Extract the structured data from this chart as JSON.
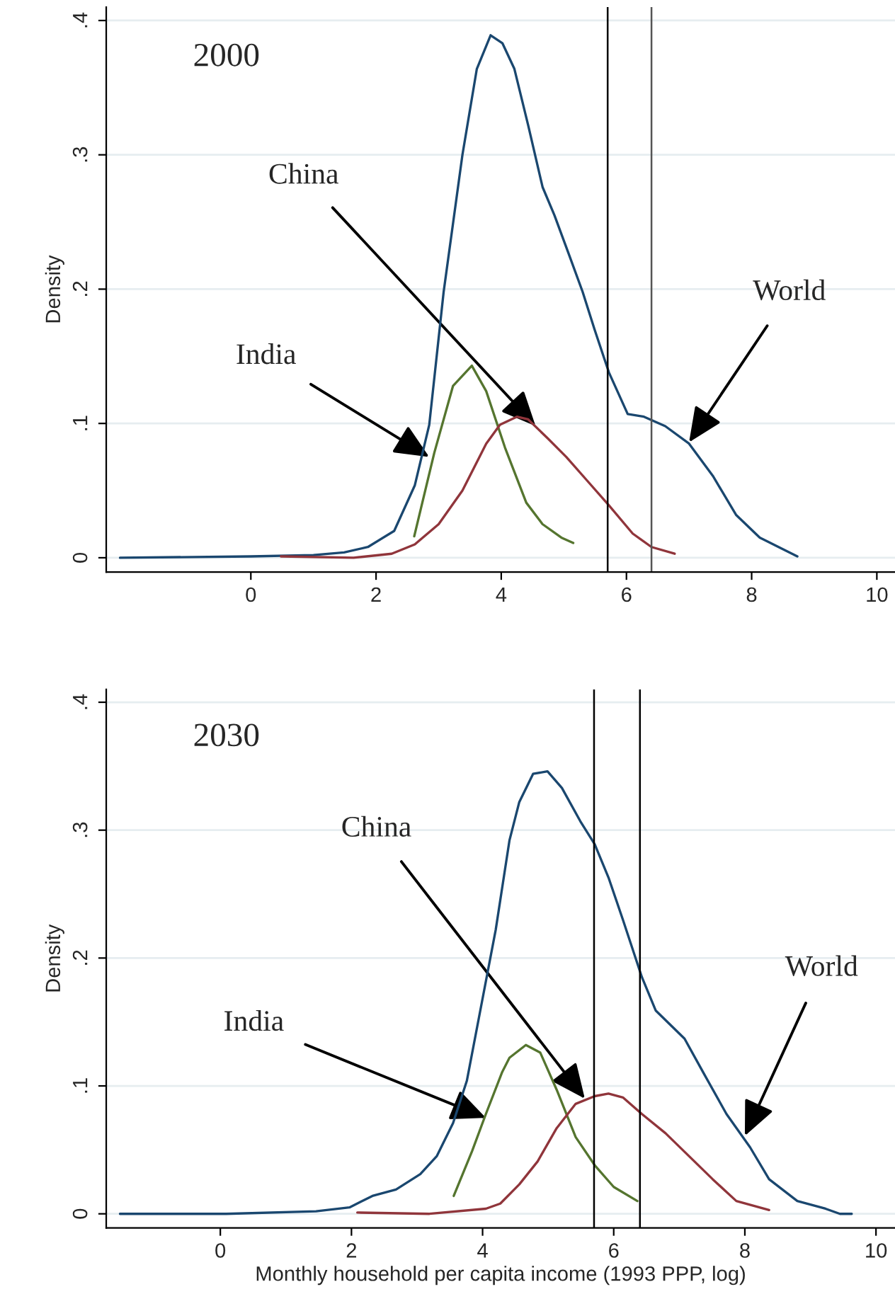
{
  "chart_data": [
    {
      "type": "line",
      "ylabel": "Density",
      "xlim": [
        -2.31,
        10.29
      ],
      "ylim": [
        -0.0106,
        0.41
      ],
      "xticks": [
        0,
        2,
        4,
        6,
        8,
        10
      ],
      "yticks": [
        0,
        {
          "value": 0.1,
          "label": ".1"
        },
        {
          "value": 0.2,
          "label": ".2"
        },
        {
          "value": 0.3,
          "label": ".3"
        },
        {
          "value": 0.4,
          "label": ".4"
        }
      ],
      "grid": "y",
      "tick_labels": "xy",
      "annotations": [
        "2000",
        {
          "text": "China",
          "x": 4.55,
          "y": 0.098
        },
        {
          "text": "India",
          "x": 2.85,
          "y": 0.075
        },
        {
          "text": "World",
          "x": 7.0,
          "y": 0.086
        }
      ],
      "ref_lines": [
        {
          "axis": "x",
          "value": 5.7,
          "color": "#000000"
        },
        {
          "axis": "x",
          "value": 6.4,
          "color": "#555555"
        }
      ],
      "series": [
        {
          "color": "#1a476f",
          "x": [
            -2.09,
            0,
            1,
            1.49,
            1.87,
            2.29,
            2.62,
            2.85,
            3.08,
            3.38,
            3.61,
            3.83,
            4.02,
            4.21,
            4.43,
            4.66,
            4.85,
            5.08,
            5.3,
            5.49,
            5.72,
            6.02,
            6.28,
            6.62,
            7.0,
            7.38,
            7.75,
            8.13,
            8.43,
            8.73
          ],
          "values": [
            0,
            0.001,
            0.002,
            0.004,
            0.008,
            0.02,
            0.054,
            0.099,
            0.198,
            0.3,
            0.364,
            0.389,
            0.383,
            0.364,
            0.322,
            0.276,
            0.255,
            0.226,
            0.198,
            0.17,
            0.138,
            0.107,
            0.105,
            0.098,
            0.085,
            0.061,
            0.032,
            0.015,
            0.008,
            0.001
          ]
        },
        {
          "color": "#55752f",
          "x": [
            2.61,
            2.93,
            3.23,
            3.53,
            3.76,
            4.06,
            4.4,
            4.66,
            4.96,
            5.15
          ],
          "values": [
            0.016,
            0.078,
            0.128,
            0.143,
            0.124,
            0.082,
            0.041,
            0.025,
            0.015,
            0.011
          ]
        },
        {
          "color": "#90353b",
          "x": [
            0.48,
            1.64,
            2.25,
            2.62,
            3.0,
            3.38,
            3.76,
            3.98,
            4.25,
            4.43,
            4.74,
            5.04,
            5.38,
            5.72,
            6.1,
            6.4,
            6.77
          ],
          "values": [
            0.001,
            0,
            0.003,
            0.01,
            0.025,
            0.05,
            0.085,
            0.099,
            0.105,
            0.103,
            0.089,
            0.075,
            0.057,
            0.039,
            0.018,
            0.008,
            0.003
          ]
        }
      ]
    },
    {
      "type": "line",
      "ylabel": "Density",
      "xlabel": "Monthly household per capita income (1993 PPP, log)",
      "xlim": [
        -1.74,
        10.29
      ],
      "ylim": [
        -0.011,
        0.41
      ],
      "xticks": [
        0,
        2,
        4,
        6,
        8,
        10
      ],
      "yticks": [
        0,
        {
          "value": 0.1,
          "label": ".1"
        },
        {
          "value": 0.2,
          "label": ".2"
        },
        {
          "value": 0.3,
          "label": ".3"
        },
        {
          "value": 0.4,
          "label": ".4"
        }
      ],
      "grid": "y",
      "annotations": [
        "2030",
        {
          "text": "China",
          "x": 5.56,
          "y": 0.09
        },
        {
          "text": "India",
          "x": 4.05,
          "y": 0.075
        },
        {
          "text": "World",
          "x": 8.0,
          "y": 0.061
        }
      ],
      "ref_lines": [
        {
          "axis": "x",
          "value": 5.7,
          "color": "#000000"
        },
        {
          "axis": "x",
          "value": 6.4,
          "color": "#000000"
        }
      ],
      "series": [
        {
          "color": "#1a476f",
          "x": [
            -1.53,
            0.09,
            1.46,
            1.97,
            2.32,
            2.68,
            3.05,
            3.3,
            3.55,
            3.76,
            3.98,
            4.2,
            4.41,
            4.56,
            4.77,
            4.99,
            5.21,
            5.49,
            5.71,
            5.92,
            6.14,
            6.43,
            6.64,
            7.08,
            7.36,
            7.72,
            8.08,
            8.37,
            8.8,
            9.23,
            9.45,
            9.63
          ],
          "values": [
            0,
            0,
            0.002,
            0.005,
            0.014,
            0.019,
            0.031,
            0.045,
            0.071,
            0.104,
            0.163,
            0.222,
            0.292,
            0.322,
            0.344,
            0.346,
            0.333,
            0.307,
            0.289,
            0.263,
            0.23,
            0.185,
            0.159,
            0.137,
            0.111,
            0.078,
            0.052,
            0.027,
            0.01,
            0.004,
            0,
            0
          ]
        },
        {
          "color": "#55752f",
          "x": [
            3.56,
            3.84,
            4.05,
            4.3,
            4.41,
            4.66,
            4.88,
            5.13,
            5.42,
            5.71,
            6.0,
            6.36
          ],
          "values": [
            0.014,
            0.049,
            0.078,
            0.111,
            0.122,
            0.132,
            0.126,
            0.097,
            0.06,
            0.038,
            0.021,
            0.01
          ]
        },
        {
          "color": "#90353b",
          "x": [
            2.09,
            3.19,
            4.05,
            4.27,
            4.56,
            4.84,
            5.13,
            5.42,
            5.71,
            5.92,
            6.14,
            6.43,
            6.79,
            7.15,
            7.51,
            7.87,
            8.37
          ],
          "values": [
            0.001,
            0,
            0.004,
            0.008,
            0.023,
            0.041,
            0.067,
            0.086,
            0.092,
            0.094,
            0.091,
            0.078,
            0.063,
            0.045,
            0.027,
            0.01,
            0.003
          ]
        }
      ]
    }
  ]
}
